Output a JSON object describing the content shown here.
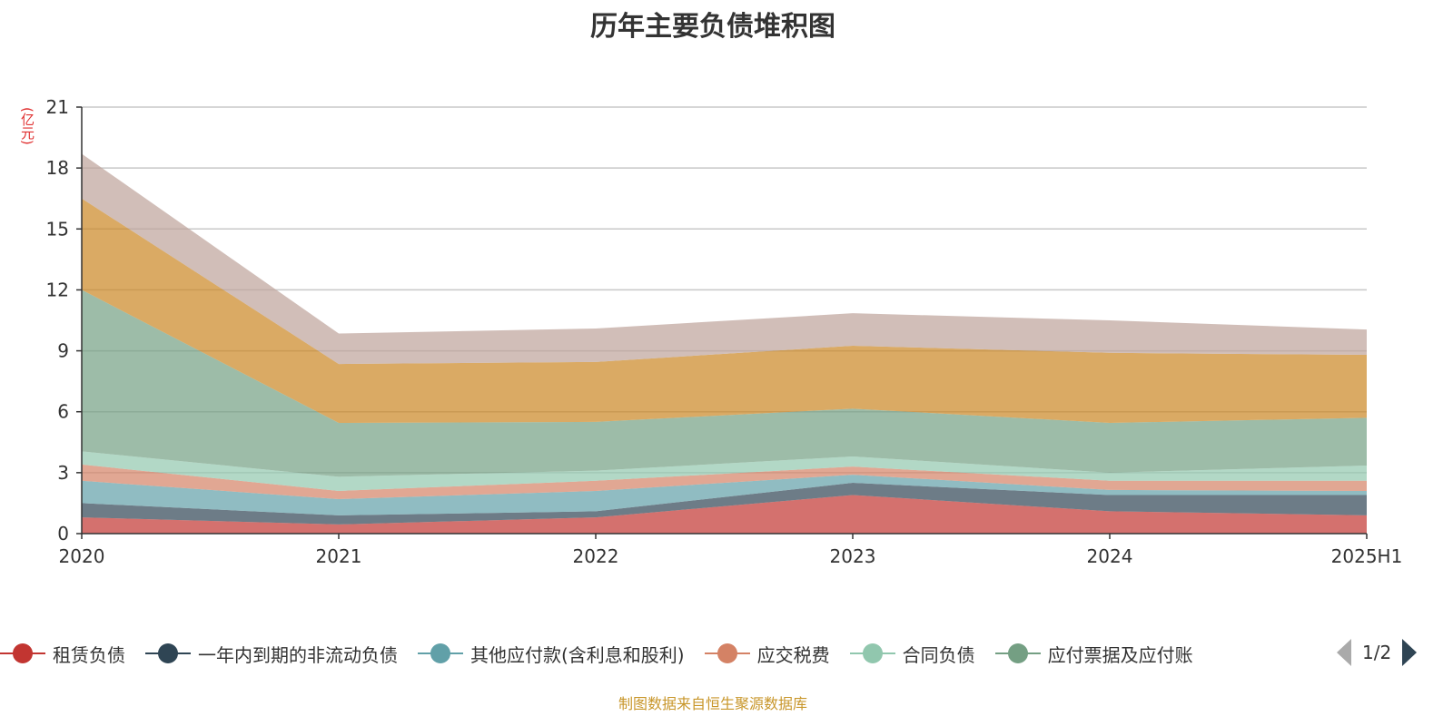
{
  "chart_data": {
    "type": "area",
    "stacked": true,
    "title": "历年主要负债堆积图",
    "unit_label": "(亿元)",
    "categories": [
      "2020",
      "2021",
      "2022",
      "2023",
      "2024",
      "2025H1"
    ],
    "ylim": [
      0,
      21
    ],
    "yticks": [
      0,
      3,
      6,
      9,
      12,
      15,
      18,
      21
    ],
    "grid": true,
    "legend_position": "bottom",
    "series": [
      {
        "name": "租赁负债",
        "color": "#c23531",
        "values": [
          0.8,
          0.45,
          0.8,
          1.9,
          1.1,
          0.9
        ]
      },
      {
        "name": "一年内到期的非流动负债",
        "color": "#2f4554",
        "values": [
          0.7,
          0.45,
          0.3,
          0.6,
          0.8,
          1.0
        ]
      },
      {
        "name": "其他应付款(含利息和股利)",
        "color": "#61a0a8",
        "values": [
          1.1,
          0.8,
          1.0,
          0.4,
          0.25,
          0.2
        ]
      },
      {
        "name": "应交税费",
        "color": "#d48265",
        "values": [
          0.8,
          0.4,
          0.5,
          0.4,
          0.45,
          0.5
        ]
      },
      {
        "name": "合同负债",
        "color": "#91c7ae",
        "values": [
          0.65,
          0.7,
          0.5,
          0.5,
          0.4,
          0.75
        ]
      },
      {
        "name": "应付票据及应付账",
        "color": "#749f83",
        "values": [
          7.95,
          2.65,
          2.4,
          2.35,
          2.45,
          2.35
        ]
      },
      {
        "color": "#ca8622",
        "values": [
          4.5,
          2.9,
          2.95,
          3.1,
          3.45,
          3.1
        ]
      },
      {
        "color": "#bda29a",
        "values": [
          2.2,
          1.5,
          1.65,
          1.6,
          1.6,
          1.25
        ]
      }
    ]
  },
  "legend": {
    "page": "1/2"
  },
  "footer": "制图数据来自恒生聚源数据库"
}
